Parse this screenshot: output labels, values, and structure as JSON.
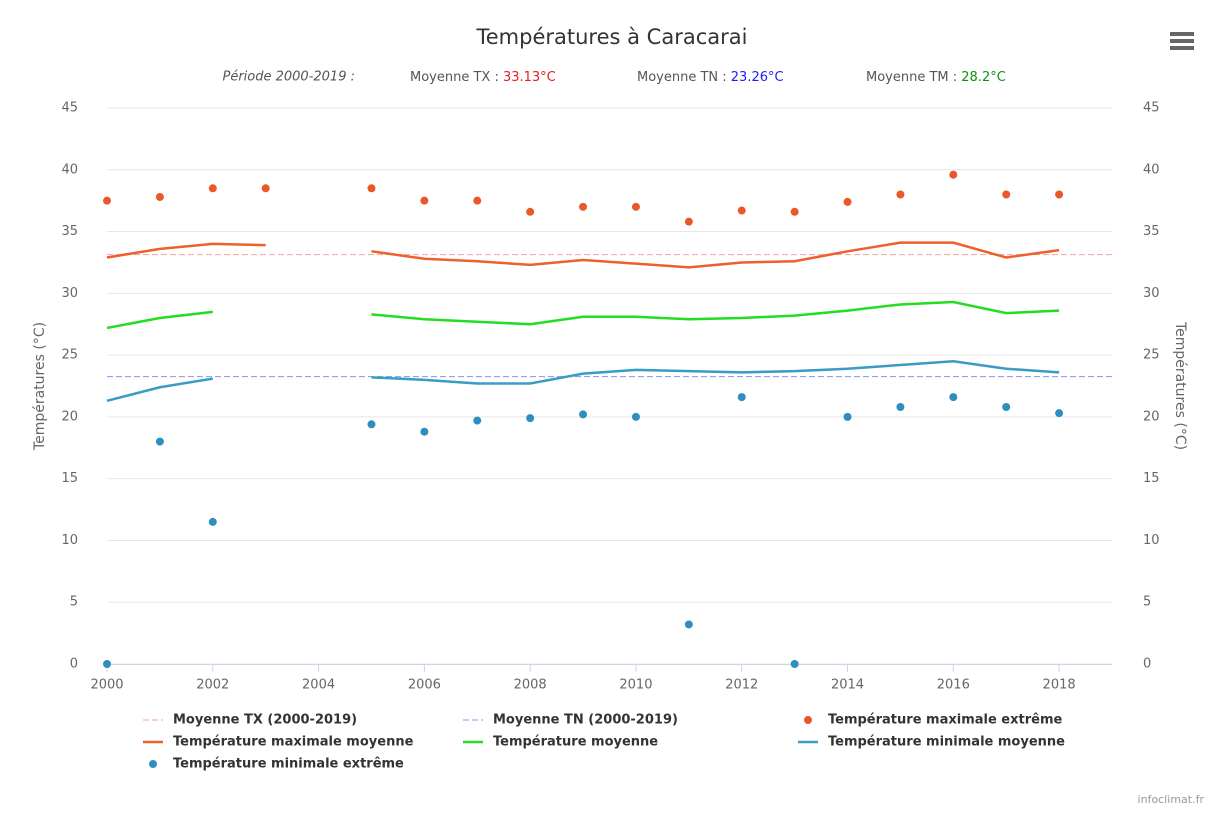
{
  "chart_data": {
    "type": "line",
    "title": "Températures à Caracarai",
    "subtitle": {
      "period": "Période 2000-2019 :",
      "tx_label": "Moyenne TX : ",
      "tx_value": "33.13°C",
      "tn_label": "Moyenne TN : ",
      "tn_value": "23.26°C",
      "tm_label": "Moyenne TM : ",
      "tm_value": "28.2°C"
    },
    "y_label": "Températures (°C)",
    "y2_label": "Températures (°C)",
    "credit": "infoclimat.fr",
    "x": [
      2000,
      2001,
      2002,
      2003,
      2004,
      2005,
      2006,
      2007,
      2008,
      2009,
      2010,
      2011,
      2012,
      2013,
      2014,
      2015,
      2016,
      2017,
      2018
    ],
    "xlim": [
      2000,
      2019
    ],
    "xticks": [
      2000,
      2002,
      2004,
      2006,
      2008,
      2010,
      2012,
      2014,
      2016,
      2018
    ],
    "ylim": [
      0,
      45
    ],
    "yticks": [
      0,
      5,
      10,
      15,
      20,
      25,
      30,
      35,
      40,
      45
    ],
    "y2lim": [
      0,
      45
    ],
    "y2ticks": [
      0,
      5,
      10,
      15,
      20,
      25,
      30,
      35,
      40,
      45
    ],
    "grid": true,
    "series": [
      {
        "name": "Moyenne TX (2000-2019)",
        "type": "line",
        "dashed": true,
        "color": "#f4a0a0",
        "x": [
          2000,
          2019
        ],
        "values": [
          33.13,
          33.13
        ]
      },
      {
        "name": "Moyenne TN (2000-2019)",
        "type": "line",
        "dashed": true,
        "color": "#8f8fee",
        "x": [
          2000,
          2019
        ],
        "values": [
          23.26,
          23.26
        ]
      },
      {
        "name": "Température maximale extrême",
        "type": "scatter",
        "color": "#e9582b",
        "values": [
          37.5,
          37.8,
          38.5,
          38.5,
          null,
          38.5,
          37.5,
          37.5,
          36.6,
          37.0,
          37.0,
          35.8,
          36.7,
          36.6,
          37.4,
          38.0,
          39.6,
          38.0,
          38.0
        ]
      },
      {
        "name": "Température maximale moyenne",
        "type": "line",
        "color": "#ef5f2c",
        "values": [
          32.9,
          33.6,
          34.0,
          33.9,
          null,
          33.4,
          32.8,
          32.6,
          32.3,
          32.7,
          32.4,
          32.1,
          32.5,
          32.6,
          33.4,
          34.1,
          34.1,
          32.9,
          33.5
        ]
      },
      {
        "name": "Température moyenne",
        "type": "line",
        "color": "#22dd22",
        "values": [
          27.2,
          28.0,
          28.5,
          null,
          null,
          28.3,
          27.9,
          27.7,
          27.5,
          28.1,
          28.1,
          27.9,
          28.0,
          28.2,
          28.6,
          29.1,
          29.3,
          28.4,
          28.6
        ]
      },
      {
        "name": "Température minimale moyenne",
        "type": "line",
        "color": "#3a9bc4",
        "values": [
          21.3,
          22.4,
          23.1,
          null,
          null,
          23.2,
          23.0,
          22.7,
          22.7,
          23.5,
          23.8,
          23.7,
          23.6,
          23.7,
          23.9,
          24.2,
          24.5,
          23.9,
          23.6
        ]
      },
      {
        "name": "Température minimale extrême",
        "type": "scatter",
        "color": "#2e8fbf",
        "values": [
          0,
          18.0,
          11.5,
          null,
          null,
          19.4,
          18.8,
          19.7,
          19.9,
          20.2,
          20.0,
          3.2,
          21.6,
          0,
          20.0,
          20.8,
          21.6,
          20.8,
          20.3
        ]
      }
    ]
  }
}
